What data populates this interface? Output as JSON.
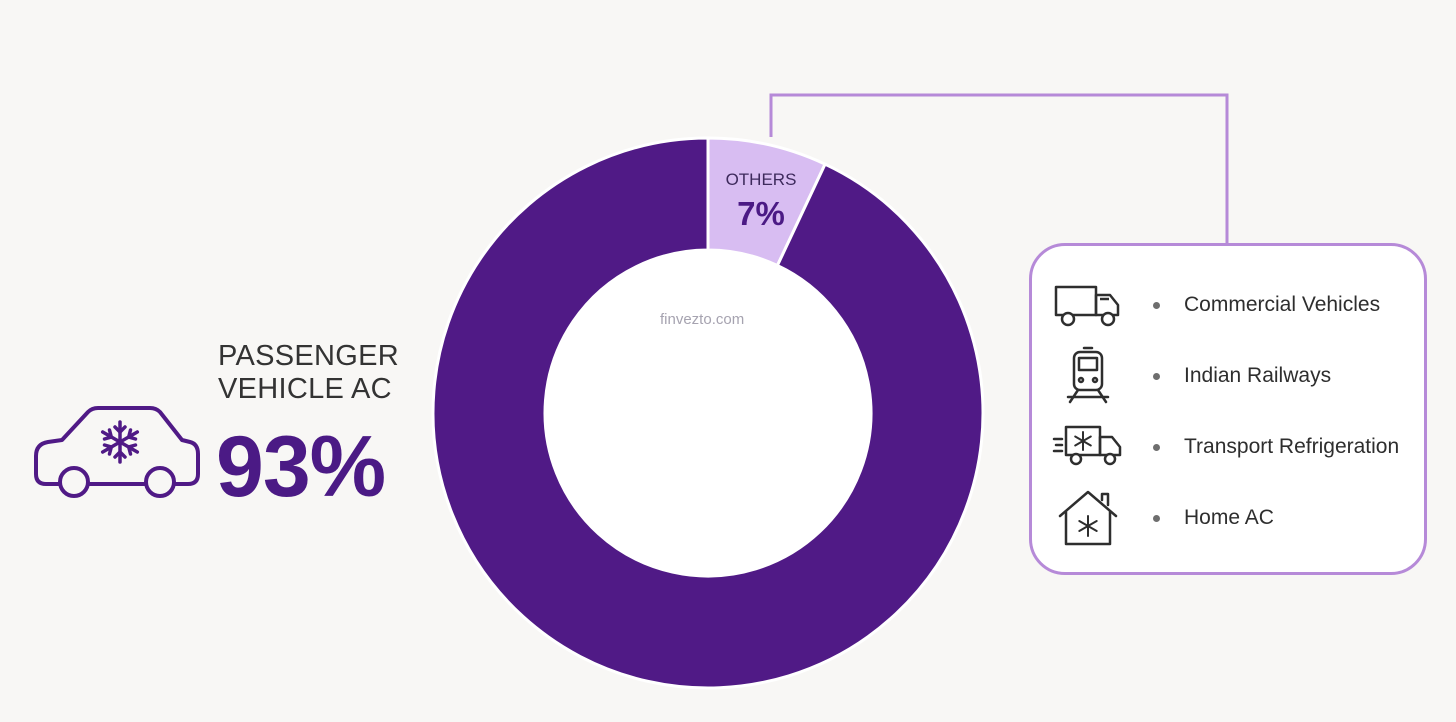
{
  "chart_data": {
    "type": "pie",
    "slices": [
      {
        "label": "PASSENGER VEHICLE AC",
        "value": 93,
        "value_label": "93%",
        "color": "#501a86"
      },
      {
        "label": "OTHERS",
        "value": 7,
        "value_label": "7%",
        "color": "#d8bdf2"
      }
    ],
    "donut": true
  },
  "passenger": {
    "line1": "PASSENGER",
    "line2": "VEHICLE AC",
    "value": "93%"
  },
  "others": {
    "name": "OTHERS",
    "value": "7%"
  },
  "watermark": "finvezto.com",
  "others_breakdown": [
    {
      "label": "Commercial Vehicles",
      "icon": "truck-icon"
    },
    {
      "label": "Indian Railways",
      "icon": "train-icon"
    },
    {
      "label": "Transport Refrigeration",
      "icon": "refrigerated-truck-icon"
    },
    {
      "label": "Home AC",
      "icon": "house-snowflake-icon"
    }
  ],
  "colors": {
    "primary": "#501a86",
    "accent": "#d8bdf2",
    "outline": "#b68ad8",
    "background": "#f8f7f5"
  }
}
